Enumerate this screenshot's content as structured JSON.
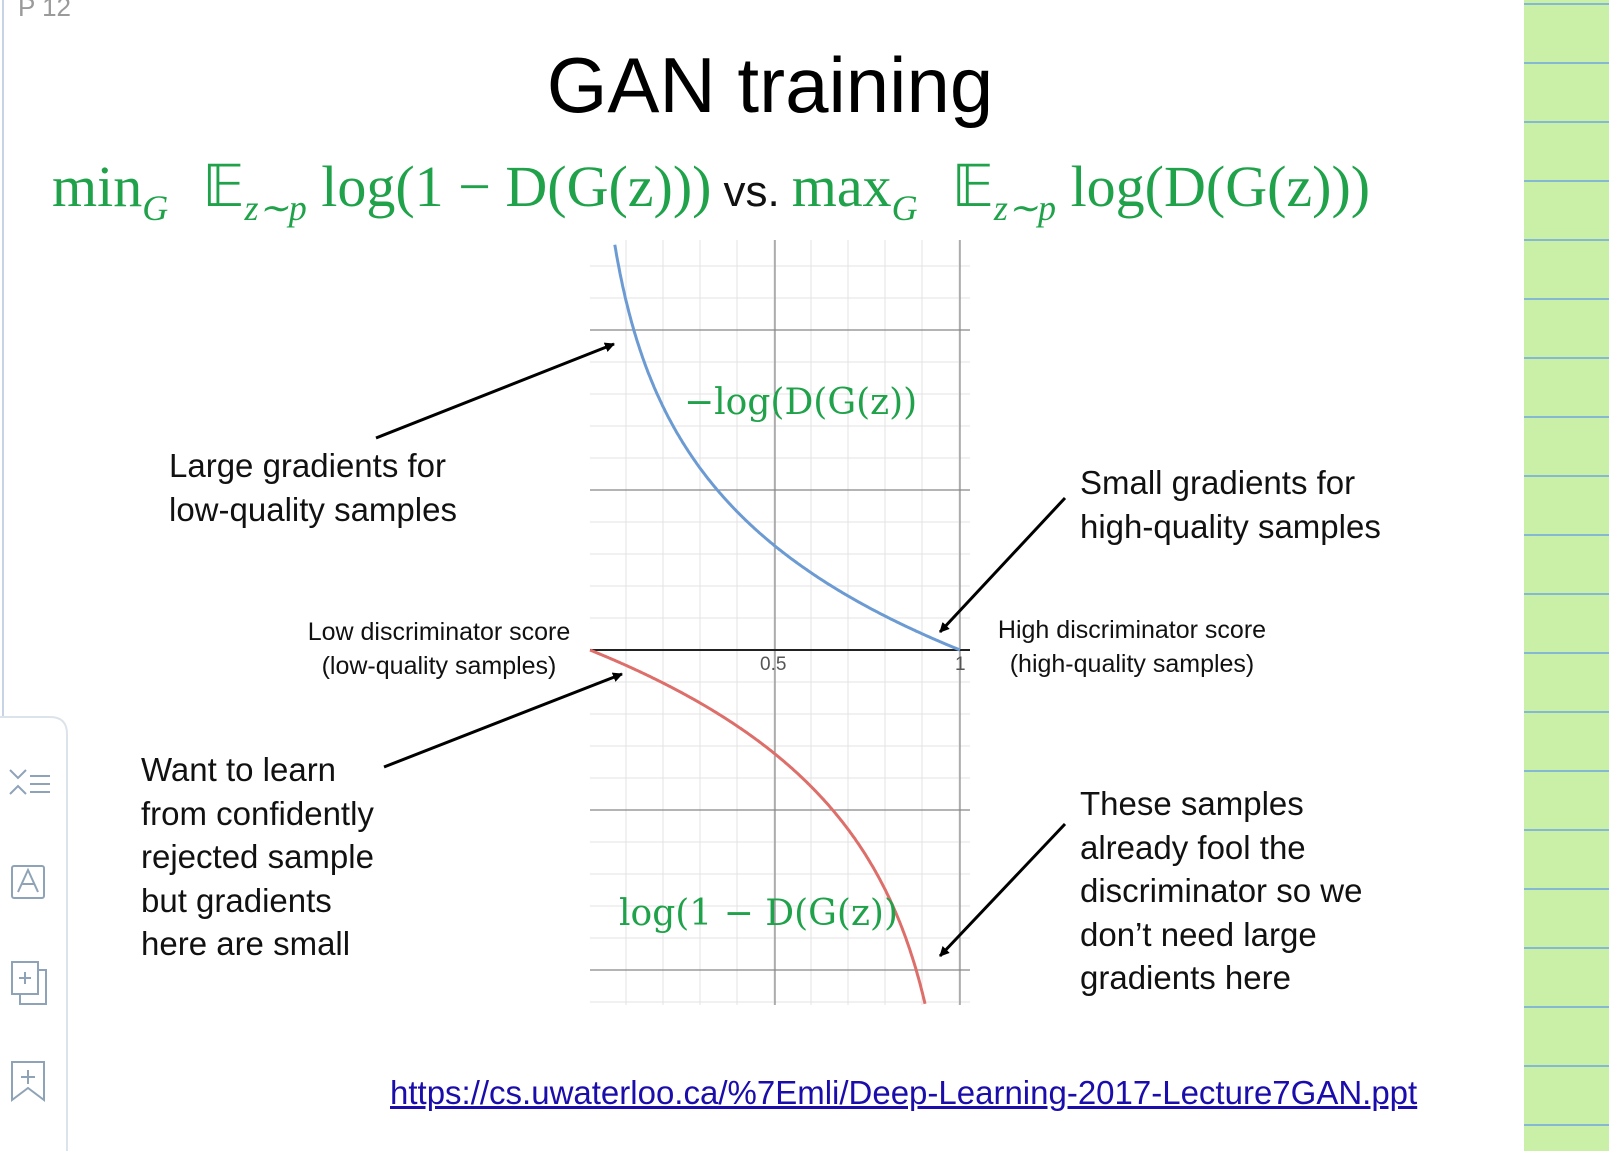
{
  "page_label": "P 12",
  "title": "GAN training",
  "formula": {
    "left": {
      "op": "min",
      "op_sub": "G",
      "expect": "𝔼",
      "expect_sub": "z∼p",
      "expr": "log(1 − D(G(z)))"
    },
    "connector": "vs.",
    "right": {
      "op": "max",
      "op_sub": "G",
      "expect": "𝔼",
      "expect_sub": "z∼p",
      "expr": "log(D(G(z)))"
    }
  },
  "plot": {
    "upper_curve_label": "−log(D(G(z))",
    "lower_curve_label": "log(1 − D(G(z))",
    "x_tick_labels": [
      "0.5",
      "1"
    ],
    "left_axis_label": [
      "Low discriminator score",
      "(low-quality samples)"
    ],
    "right_axis_label": [
      "High discriminator score",
      "(high-quality samples)"
    ]
  },
  "annotations": {
    "top_left": [
      "Large gradients for",
      "low-quality samples"
    ],
    "top_right": [
      "Small gradients for",
      "high-quality samples"
    ],
    "bottom_left": [
      "Want to learn",
      "from confidently",
      "rejected sample",
      "but gradients",
      "here are small"
    ],
    "bottom_right": [
      "These samples",
      "already fool the",
      "discriminator so we",
      "don’t need large",
      "gradients here"
    ]
  },
  "source_link": "https://cs.uwaterloo.ca/%7Emli/Deep-Learning-2017-Lecture7GAN.ppt"
}
